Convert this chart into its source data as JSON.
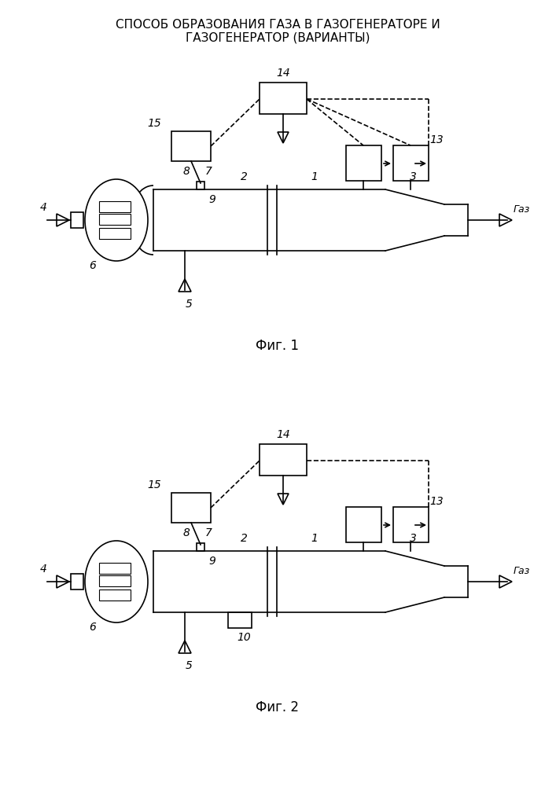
{
  "title_line1": "СПОСОБ ОБРАЗОВАНИЯ ГАЗА В ГАЗОГЕНЕРАТОРЕ И",
  "title_line2": "ГАЗОГЕНЕРАТОР (ВАРИАНТЫ)",
  "fig1_caption": "Фиг. 1",
  "fig2_caption": "Фиг. 2",
  "bg_color": "#ffffff",
  "line_color": "#000000",
  "lw": 1.2,
  "fig_label_fontsize": 12,
  "title_fontsize": 11,
  "number_fontsize": 10
}
